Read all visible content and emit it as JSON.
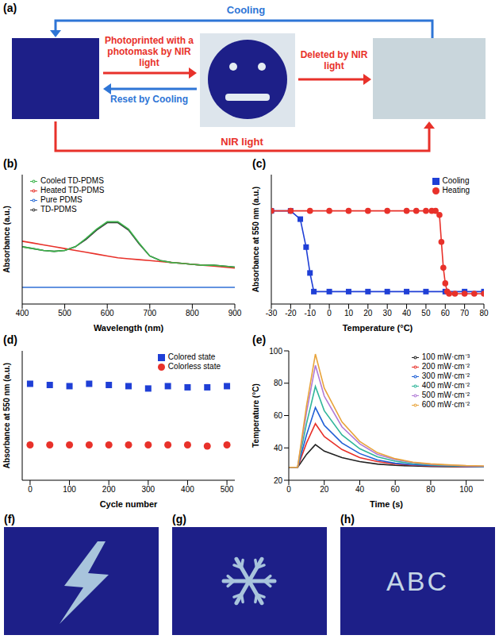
{
  "figure_a": {
    "panel": "(a)",
    "top_arrow": "Cooling",
    "print_arrow": "Photoprinted with a photomask by NIR light",
    "reset_arrow": "Reset by Cooling",
    "delete_arrow": "Deleted by NIR light",
    "bottom_arrow": "NIR light"
  },
  "chart_data": [
    {
      "panel": "(b)",
      "type": "line",
      "x_label": "Wavelength (nm)",
      "y_label": "Absorbance (a.u.)",
      "x": [
        400,
        425,
        450,
        475,
        500,
        525,
        550,
        575,
        600,
        625,
        650,
        675,
        700,
        725,
        750,
        775,
        800,
        825,
        850,
        875,
        900
      ],
      "xlim": [
        400,
        900
      ],
      "xticks": [
        400,
        500,
        600,
        700,
        800,
        900
      ],
      "ylim": [
        0,
        1.4
      ],
      "tick_labels": "x",
      "legend": "upper left",
      "series": [
        {
          "name": "TD-PDMS",
          "color": "#333333",
          "marker": "none",
          "line_style": "solid",
          "values": [
            0.62,
            0.6,
            0.58,
            0.57,
            0.58,
            0.62,
            0.7,
            0.8,
            0.88,
            0.88,
            0.8,
            0.65,
            0.52,
            0.47,
            0.45,
            0.44,
            0.43,
            0.42,
            0.42,
            0.41,
            0.4
          ]
        },
        {
          "name": "Heated TD-PDMS",
          "color": "#e8312a",
          "marker": "none",
          "line_style": "solid",
          "values": [
            0.68,
            0.66,
            0.64,
            0.62,
            0.6,
            0.58,
            0.56,
            0.54,
            0.52,
            0.5,
            0.49,
            0.48,
            0.47,
            0.46,
            0.45,
            0.44,
            0.43,
            0.42,
            0.41,
            0.4,
            0.39
          ]
        },
        {
          "name": "Cooled TD-PDMS",
          "color": "#3cb44b",
          "marker": "none",
          "line_style": "solid",
          "values": [
            0.62,
            0.6,
            0.58,
            0.57,
            0.58,
            0.62,
            0.71,
            0.81,
            0.89,
            0.89,
            0.81,
            0.66,
            0.52,
            0.47,
            0.45,
            0.44,
            0.43,
            0.42,
            0.42,
            0.41,
            0.4
          ]
        },
        {
          "name": "Pure PDMS",
          "color": "#2f6fd6",
          "marker": "none",
          "line_style": "solid",
          "values": [
            0.18,
            0.18,
            0.18,
            0.18,
            0.18,
            0.18,
            0.18,
            0.18,
            0.18,
            0.18,
            0.18,
            0.18,
            0.18,
            0.18,
            0.18,
            0.18,
            0.18,
            0.18,
            0.18,
            0.18,
            0.18
          ]
        }
      ]
    },
    {
      "panel": "(c)",
      "type": "line",
      "x_label": "Temperature (°C)",
      "y_label": "Absorbance at 550 nm (a.u.)",
      "xlim": [
        -30,
        80
      ],
      "xticks": [
        -30,
        -20,
        -10,
        0,
        10,
        20,
        30,
        40,
        50,
        60,
        70,
        80
      ],
      "ylim": [
        0,
        1.25
      ],
      "tick_labels": "x",
      "legend": "upper right",
      "series": [
        {
          "name": "Cooling",
          "color": "#1f3fd6",
          "marker": "square",
          "line_style": "solid",
          "x": [
            -30,
            -20,
            -15,
            -12,
            -10,
            -8,
            0,
            10,
            20,
            30,
            40,
            50,
            60,
            70,
            80
          ],
          "values": [
            0.9,
            0.9,
            0.82,
            0.55,
            0.3,
            0.12,
            0.12,
            0.12,
            0.12,
            0.12,
            0.12,
            0.12,
            0.12,
            0.12,
            0.12
          ]
        },
        {
          "name": "Heating",
          "color": "#e8312a",
          "marker": "circle",
          "line_style": "solid",
          "x": [
            -30,
            -20,
            -10,
            0,
            10,
            20,
            30,
            40,
            45,
            50,
            53,
            55,
            57,
            58,
            59,
            60,
            61,
            62,
            65,
            70,
            75,
            80
          ],
          "values": [
            0.9,
            0.9,
            0.9,
            0.9,
            0.9,
            0.9,
            0.9,
            0.9,
            0.9,
            0.9,
            0.9,
            0.9,
            0.86,
            0.6,
            0.35,
            0.2,
            0.12,
            0.1,
            0.1,
            0.1,
            0.1,
            0.1
          ]
        }
      ]
    },
    {
      "panel": "(d)",
      "type": "scatter",
      "x_label": "Cycle number",
      "y_label": "Absorbance at 550 nm (a.u.)",
      "x": [
        0,
        50,
        100,
        150,
        200,
        250,
        300,
        350,
        400,
        450,
        500
      ],
      "xlim": [
        -20,
        520
      ],
      "xticks": [
        0,
        100,
        200,
        300,
        400,
        500
      ],
      "ylim": [
        0,
        1.1
      ],
      "tick_labels": "x",
      "legend": "upper right",
      "series": [
        {
          "name": "Colored state",
          "color": "#1f3fd6",
          "marker": "square",
          "values": [
            0.82,
            0.81,
            0.8,
            0.82,
            0.81,
            0.8,
            0.78,
            0.8,
            0.79,
            0.79,
            0.8
          ]
        },
        {
          "name": "Colorless state",
          "color": "#e8312a",
          "marker": "circle",
          "values": [
            0.3,
            0.3,
            0.3,
            0.3,
            0.3,
            0.3,
            0.3,
            0.3,
            0.3,
            0.29,
            0.3
          ]
        }
      ]
    },
    {
      "panel": "(e)",
      "type": "line",
      "x_label": "Time (s)",
      "y_label": "Temperature (°C)",
      "x": [
        0,
        5,
        10,
        15,
        20,
        30,
        40,
        50,
        60,
        70,
        80,
        90,
        100,
        110
      ],
      "xlim": [
        0,
        110
      ],
      "xticks": [
        0,
        20,
        40,
        60,
        80,
        100
      ],
      "ylim": [
        20,
        100
      ],
      "yticks": [
        20,
        40,
        60,
        80,
        100
      ],
      "legend": "upper right",
      "series": [
        {
          "name": "100 mW·cm⁻³",
          "color": "#222222",
          "marker": "none",
          "line_style": "solid",
          "values": [
            28,
            28,
            36,
            42,
            38,
            34,
            31.5,
            30,
            29.2,
            28.8,
            28.5,
            28.4,
            28.3,
            28.2
          ]
        },
        {
          "name": "200 mW·cm⁻²",
          "color": "#e8312a",
          "marker": "none",
          "line_style": "solid",
          "values": [
            28,
            28,
            43,
            55,
            47,
            39,
            34,
            31.5,
            30,
            29.3,
            28.9,
            28.6,
            28.4,
            28.3
          ]
        },
        {
          "name": "300 mW·cm⁻²",
          "color": "#1f5fd6",
          "marker": "none",
          "line_style": "solid",
          "values": [
            28,
            28,
            48,
            65,
            54,
            43,
            36.5,
            32.5,
            30.5,
            29.6,
            29.1,
            28.8,
            28.5,
            28.4
          ]
        },
        {
          "name": "400 mW·cm⁻²",
          "color": "#2fb59a",
          "marker": "none",
          "line_style": "solid",
          "values": [
            28,
            28,
            55,
            78,
            63,
            48,
            39.5,
            34.5,
            31.8,
            30.3,
            29.5,
            29,
            28.7,
            28.5
          ]
        },
        {
          "name": "500 mW·cm⁻²",
          "color": "#b07ad6",
          "marker": "none",
          "line_style": "solid",
          "values": [
            28,
            28,
            62,
            91,
            72,
            53,
            42.5,
            36,
            32.8,
            30.9,
            29.9,
            29.3,
            28.9,
            28.6
          ]
        },
        {
          "name": "600 mW·cm⁻²",
          "color": "#e8a33a",
          "marker": "none",
          "line_style": "solid",
          "values": [
            28,
            28,
            66,
            98,
            77,
            56,
            44,
            37,
            33.3,
            31.2,
            30.1,
            29.5,
            29,
            28.8
          ]
        }
      ]
    }
  ],
  "photos": [
    {
      "panel": "(f)"
    },
    {
      "panel": "(g)"
    },
    {
      "panel": "(h)",
      "text": "ABC"
    }
  ]
}
